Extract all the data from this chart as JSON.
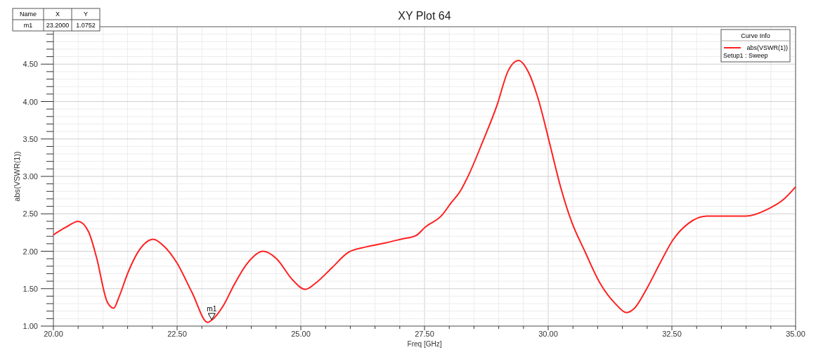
{
  "chart_data": {
    "type": "line",
    "title": "XY Plot 64",
    "xlabel": "Freq [GHz]",
    "ylabel": "abs(VSWR(1))",
    "legend_title": "Curve Info",
    "legend": "top right",
    "grid": true,
    "marker": "none",
    "line_style": "solid",
    "xlim": [
      20,
      35
    ],
    "ylim": [
      1,
      5
    ],
    "xticks": [
      {
        "value": 20,
        "label": "20.00"
      },
      {
        "value": 20.5,
        "label": null
      },
      {
        "value": 21,
        "label": null
      },
      {
        "value": 21.5,
        "label": null
      },
      {
        "value": 22,
        "label": null
      },
      {
        "value": 22.5,
        "label": "22.50"
      },
      {
        "value": 23,
        "label": null
      },
      {
        "value": 23.5,
        "label": null
      },
      {
        "value": 24,
        "label": null
      },
      {
        "value": 24.5,
        "label": null
      },
      {
        "value": 25,
        "label": "25.00"
      },
      {
        "value": 25.5,
        "label": null
      },
      {
        "value": 26,
        "label": null
      },
      {
        "value": 26.5,
        "label": null
      },
      {
        "value": 27,
        "label": null
      },
      {
        "value": 27.5,
        "label": "27.50"
      },
      {
        "value": 28,
        "label": null
      },
      {
        "value": 28.5,
        "label": null
      },
      {
        "value": 29,
        "label": null
      },
      {
        "value": 29.5,
        "label": null
      },
      {
        "value": 30,
        "label": "30.00"
      },
      {
        "value": 30.5,
        "label": null
      },
      {
        "value": 31,
        "label": null
      },
      {
        "value": 31.5,
        "label": null
      },
      {
        "value": 32,
        "label": null
      },
      {
        "value": 32.5,
        "label": "32.50"
      },
      {
        "value": 33,
        "label": null
      },
      {
        "value": 33.5,
        "label": null
      },
      {
        "value": 34,
        "label": null
      },
      {
        "value": 34.5,
        "label": null
      },
      {
        "value": 35,
        "label": "35.00"
      }
    ],
    "yticks": [
      {
        "value": 1,
        "label": "1.00"
      },
      {
        "value": 1.1,
        "label": null
      },
      {
        "value": 1.2,
        "label": null
      },
      {
        "value": 1.3,
        "label": null
      },
      {
        "value": 1.4,
        "label": null
      },
      {
        "value": 1.5,
        "label": "1.50"
      },
      {
        "value": 1.6,
        "label": null
      },
      {
        "value": 1.7,
        "label": null
      },
      {
        "value": 1.8,
        "label": null
      },
      {
        "value": 1.9,
        "label": null
      },
      {
        "value": 2,
        "label": "2.00"
      },
      {
        "value": 2.1,
        "label": null
      },
      {
        "value": 2.2,
        "label": null
      },
      {
        "value": 2.3,
        "label": null
      },
      {
        "value": 2.4,
        "label": null
      },
      {
        "value": 2.5,
        "label": "2.50"
      },
      {
        "value": 2.6,
        "label": null
      },
      {
        "value": 2.7,
        "label": null
      },
      {
        "value": 2.8,
        "label": null
      },
      {
        "value": 2.9,
        "label": null
      },
      {
        "value": 3,
        "label": "3.00"
      },
      {
        "value": 3.1,
        "label": null
      },
      {
        "value": 3.2,
        "label": null
      },
      {
        "value": 3.3,
        "label": null
      },
      {
        "value": 3.4,
        "label": null
      },
      {
        "value": 3.5,
        "label": "3.50"
      },
      {
        "value": 3.6,
        "label": null
      },
      {
        "value": 3.7,
        "label": null
      },
      {
        "value": 3.8,
        "label": null
      },
      {
        "value": 3.9,
        "label": null
      },
      {
        "value": 4,
        "label": "4.00"
      },
      {
        "value": 4.1,
        "label": null
      },
      {
        "value": 4.2,
        "label": null
      },
      {
        "value": 4.3,
        "label": null
      },
      {
        "value": 4.4,
        "label": null
      },
      {
        "value": 4.5,
        "label": "4.50"
      },
      {
        "value": 4.6,
        "label": null
      },
      {
        "value": 4.7,
        "label": null
      },
      {
        "value": 4.8,
        "label": null
      },
      {
        "value": 4.9,
        "label": null
      }
    ],
    "x": [
      20,
      20.25,
      20.5,
      20.71,
      20.87,
      21.09,
      21.22,
      21.32,
      21.51,
      21.73,
      22.02,
      22.23,
      22.5,
      22.8,
      23.12,
      23.2,
      23.44,
      23.65,
      23.92,
      24.24,
      24.51,
      24.83,
      25.09,
      25.31,
      25.63,
      25.95,
      26.33,
      26.7,
      27.02,
      27.33,
      27.51,
      27.85,
      28.03,
      28.22,
      28.4,
      28.68,
      28.96,
      29.19,
      29.4,
      29.61,
      29.8,
      30.03,
      30.25,
      30.47,
      30.74,
      31.05,
      31.37,
      31.58,
      31.73,
      32,
      32.26,
      32.52,
      32.83,
      33.2,
      33.67,
      33.99,
      34.46,
      34.77,
      35
    ],
    "series": [
      {
        "name": "abs(VSWR(1))",
        "color": "#ff2020",
        "values": [
          2.22,
          2.32,
          2.4,
          2.26,
          1.92,
          1.32,
          1.24,
          1.38,
          1.72,
          2.01,
          2.16,
          2.07,
          1.84,
          1.45,
          1.05,
          1.08,
          1.28,
          1.55,
          1.84,
          2,
          1.9,
          1.62,
          1.49,
          1.58,
          1.78,
          1.98,
          2.06,
          2.11,
          2.16,
          2.21,
          2.32,
          2.48,
          2.64,
          2.8,
          3.03,
          3.47,
          3.94,
          4.41,
          4.55,
          4.38,
          4.03,
          3.44,
          2.86,
          2.4,
          2,
          1.57,
          1.29,
          1.18,
          1.23,
          1.51,
          1.84,
          2.15,
          2.37,
          2.47,
          2.47,
          2.47,
          2.57,
          2.7,
          2.86
        ]
      }
    ],
    "annotations": [
      "Name",
      "X",
      "Y",
      "m1",
      "23.2000",
      "1.0752",
      "Setup1 : Sweep",
      {
        "text": "m1",
        "x": 23.2,
        "y": 1.0752
      }
    ]
  }
}
